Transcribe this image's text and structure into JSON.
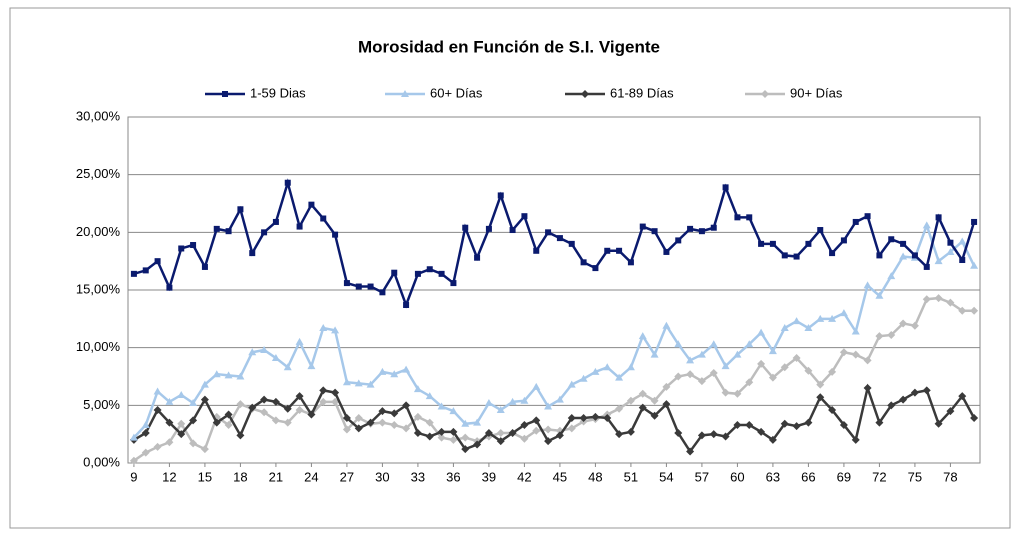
{
  "chart_data": {
    "type": "line",
    "title": "Morosidad en Función de S.I. Vigente",
    "categories": [
      9,
      null,
      null,
      12,
      null,
      null,
      15,
      null,
      null,
      18,
      null,
      null,
      21,
      null,
      null,
      24,
      null,
      null,
      27,
      null,
      null,
      30,
      null,
      null,
      33,
      null,
      null,
      36,
      null,
      null,
      39,
      null,
      null,
      42,
      null,
      null,
      45,
      null,
      null,
      48,
      null,
      null,
      51,
      null,
      null,
      54,
      null,
      null,
      57,
      null,
      null,
      60,
      null,
      null,
      63,
      null,
      null,
      66,
      null,
      null,
      69,
      null,
      null,
      72,
      null,
      null,
      75,
      null,
      null,
      78,
      null,
      null
    ],
    "series": [
      {
        "name": "1-59 Dias",
        "color": "#0a1a6e",
        "marker": "square",
        "values": [
          16.4,
          16.7,
          17.5,
          15.2,
          18.6,
          18.9,
          17.0,
          20.3,
          20.1,
          22.0,
          18.2,
          20.0,
          20.9,
          24.3,
          20.5,
          22.4,
          21.2,
          19.8,
          15.6,
          15.3,
          15.3,
          14.8,
          16.5,
          13.7,
          16.4,
          16.8,
          16.4,
          15.6,
          20.4,
          17.8,
          20.3,
          23.2,
          20.2,
          21.4,
          18.4,
          20.0,
          19.5,
          19.0,
          17.4,
          16.9,
          18.4,
          18.4,
          17.4,
          20.5,
          20.1,
          18.3,
          19.3,
          20.3,
          20.1,
          20.4,
          23.9,
          21.3,
          21.3,
          19.0,
          19.0,
          18.0,
          17.9,
          19.0,
          20.2,
          18.2,
          19.3,
          20.9,
          21.4,
          18.0,
          19.4,
          19.0,
          18.0,
          17.0,
          21.3,
          19.1,
          17.6,
          20.9
        ]
      },
      {
        "name": "60+ Días",
        "color": "#a6c8ea",
        "marker": "triangle",
        "values": [
          2.2,
          3.3,
          6.2,
          5.3,
          5.9,
          5.2,
          6.8,
          7.7,
          7.6,
          7.5,
          9.6,
          9.8,
          9.1,
          8.3,
          10.5,
          8.4,
          11.7,
          11.5,
          7.0,
          6.9,
          6.8,
          7.9,
          7.7,
          8.1,
          6.4,
          5.8,
          4.9,
          4.5,
          3.4,
          3.5,
          5.2,
          4.6,
          5.3,
          5.4,
          6.6,
          4.9,
          5.5,
          6.8,
          7.3,
          7.9,
          8.3,
          7.4,
          8.3,
          11.0,
          9.4,
          11.9,
          10.3,
          8.9,
          9.4,
          10.3,
          8.4,
          9.4,
          10.3,
          11.3,
          9.7,
          11.7,
          12.3,
          11.7,
          12.5,
          12.5,
          13.0,
          11.4,
          15.4,
          14.5,
          16.2,
          17.9,
          17.8,
          20.6,
          17.5,
          18.3,
          19.2,
          17.1
        ]
      },
      {
        "name": "61-89 Días",
        "color": "#3a3a3a",
        "marker": "diamond",
        "values": [
          2.0,
          2.6,
          4.6,
          3.5,
          2.5,
          3.7,
          5.5,
          3.5,
          4.2,
          2.4,
          4.8,
          5.5,
          5.3,
          4.7,
          5.8,
          4.2,
          6.3,
          6.1,
          3.9,
          3.0,
          3.5,
          4.5,
          4.3,
          5.0,
          2.6,
          2.3,
          2.7,
          2.7,
          1.2,
          1.6,
          2.6,
          1.9,
          2.6,
          3.3,
          3.7,
          1.9,
          2.4,
          3.9,
          3.9,
          4.0,
          3.9,
          2.5,
          2.7,
          4.8,
          4.1,
          5.1,
          2.6,
          1.0,
          2.4,
          2.5,
          2.3,
          3.3,
          3.3,
          2.7,
          2.0,
          3.4,
          3.2,
          3.5,
          5.7,
          4.6,
          3.3,
          2.0,
          6.5,
          3.5,
          5.0,
          5.5,
          6.1,
          6.3,
          3.4,
          4.5,
          5.8,
          3.9
        ]
      },
      {
        "name": "90+ Días",
        "color": "#bdbdbd",
        "marker": "diamond",
        "values": [
          0.2,
          0.9,
          1.4,
          1.8,
          3.4,
          1.7,
          1.2,
          4.0,
          3.3,
          5.1,
          4.7,
          4.4,
          3.7,
          3.5,
          4.6,
          4.2,
          5.3,
          5.3,
          2.9,
          3.9,
          3.4,
          3.5,
          3.3,
          3.0,
          4.0,
          3.5,
          2.2,
          2.0,
          2.2,
          1.9,
          2.3,
          2.6,
          2.6,
          2.1,
          2.8,
          2.9,
          2.8,
          3.0,
          3.6,
          3.8,
          4.2,
          4.7,
          5.4,
          6.0,
          5.4,
          6.6,
          7.5,
          7.7,
          7.1,
          7.8,
          6.1,
          6.0,
          7.0,
          8.6,
          7.4,
          8.3,
          9.1,
          8.0,
          6.8,
          7.9,
          9.6,
          9.4,
          8.9,
          11.0,
          11.1,
          12.1,
          11.9,
          14.2,
          14.3,
          13.9,
          13.2,
          13.2
        ]
      }
    ],
    "ylim": [
      0,
      30
    ],
    "yticks": [
      {
        "value": 0,
        "label": "0,00%"
      },
      {
        "value": 5,
        "label": "5,00%"
      },
      {
        "value": 10,
        "label": "10,00%"
      },
      {
        "value": 15,
        "label": "15,00%"
      },
      {
        "value": 20,
        "label": "20,00%"
      },
      {
        "value": 25,
        "label": "25,00%"
      },
      {
        "value": 30,
        "label": "30,00%"
      }
    ],
    "grid": true,
    "legend": "top"
  }
}
